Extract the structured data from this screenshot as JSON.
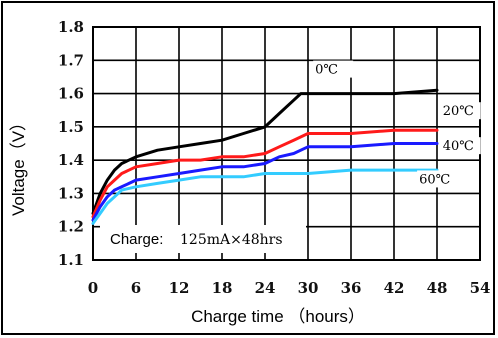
{
  "chart_data": {
    "type": "line",
    "title": "",
    "xlabel": "Charge time （hours）",
    "ylabel": "Voltage（V）",
    "xlim": [
      0,
      54
    ],
    "ylim": [
      1.1,
      1.8
    ],
    "x_ticks": [
      "0",
      "6",
      "12",
      "18",
      "24",
      "30",
      "36",
      "42",
      "48",
      "54"
    ],
    "y_ticks": [
      "1.1",
      "1.2",
      "1.3",
      "1.4",
      "1.5",
      "1.6",
      "1.7",
      "1.8"
    ],
    "grid": true,
    "annotation": {
      "label": "Charge:",
      "value": "125mA×48hrs"
    },
    "series": [
      {
        "name": "0℃",
        "color": "#000000",
        "x": [
          0,
          1,
          2,
          3,
          4,
          6,
          9,
          12,
          15,
          18,
          21,
          24,
          26,
          28,
          29,
          32,
          36,
          42,
          48
        ],
        "y": [
          1.24,
          1.3,
          1.34,
          1.37,
          1.39,
          1.41,
          1.43,
          1.44,
          1.45,
          1.46,
          1.48,
          1.5,
          1.54,
          1.58,
          1.6,
          1.6,
          1.6,
          1.6,
          1.61
        ]
      },
      {
        "name": "20℃",
        "color": "#ff1a1a",
        "x": [
          0,
          1,
          2,
          3,
          4,
          6,
          9,
          12,
          15,
          18,
          21,
          24,
          26,
          28,
          30,
          36,
          42,
          48
        ],
        "y": [
          1.23,
          1.28,
          1.32,
          1.34,
          1.36,
          1.38,
          1.39,
          1.4,
          1.4,
          1.41,
          1.41,
          1.42,
          1.44,
          1.46,
          1.48,
          1.48,
          1.49,
          1.49
        ]
      },
      {
        "name": "40℃",
        "color": "#1a1aff",
        "x": [
          0,
          1,
          2,
          3,
          4,
          6,
          9,
          12,
          15,
          18,
          21,
          24,
          26,
          28,
          30,
          36,
          42,
          48
        ],
        "y": [
          1.22,
          1.26,
          1.29,
          1.31,
          1.32,
          1.34,
          1.35,
          1.36,
          1.37,
          1.38,
          1.38,
          1.39,
          1.41,
          1.42,
          1.44,
          1.44,
          1.45,
          1.45
        ]
      },
      {
        "name": "60℃",
        "color": "#33ccff",
        "x": [
          0,
          1,
          2,
          3,
          4,
          6,
          9,
          12,
          15,
          18,
          21,
          24,
          30,
          36,
          42,
          48
        ],
        "y": [
          1.21,
          1.24,
          1.27,
          1.29,
          1.31,
          1.32,
          1.33,
          1.34,
          1.35,
          1.35,
          1.35,
          1.36,
          1.36,
          1.37,
          1.37,
          1.37
        ]
      }
    ]
  }
}
